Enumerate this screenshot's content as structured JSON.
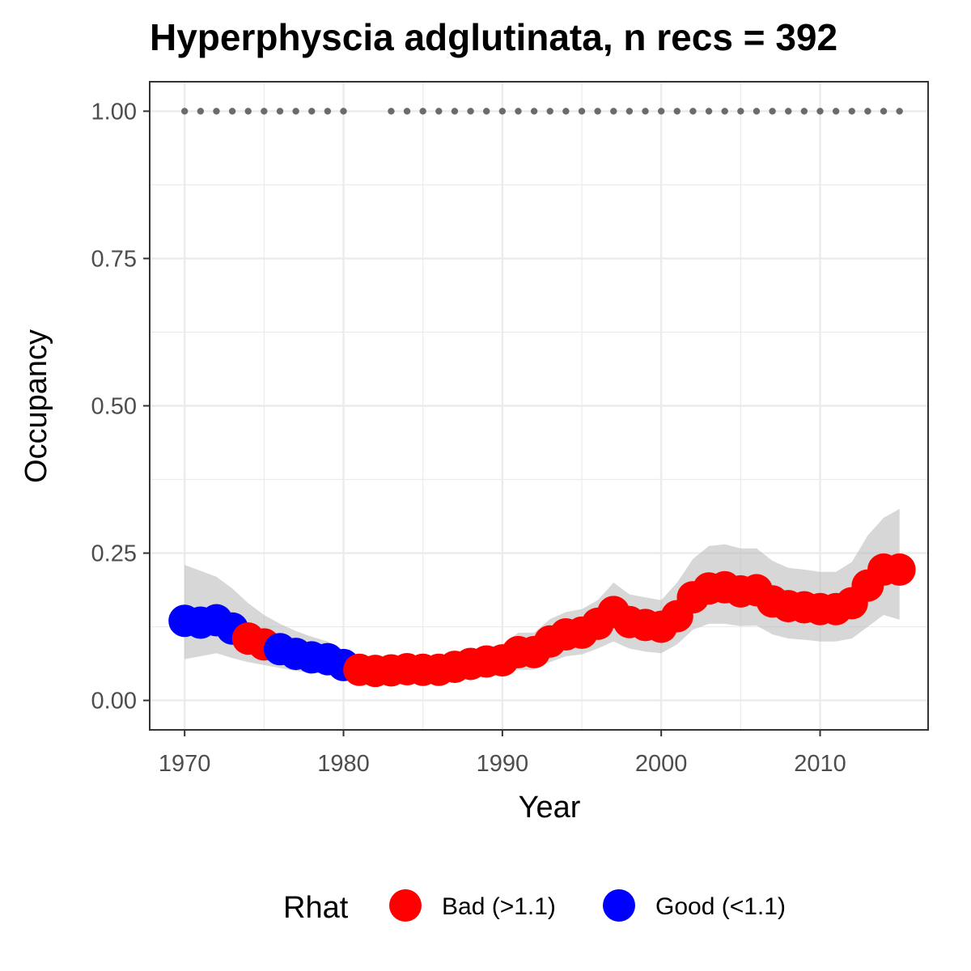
{
  "chart_data": {
    "type": "line",
    "title": "Hyperphyscia adglutinata, n recs = 392",
    "xlabel": "Year",
    "ylabel": "Occupancy",
    "xlim": [
      1967.8,
      2016.8
    ],
    "ylim": [
      -0.05,
      1.05
    ],
    "x_ticks": [
      1970,
      1980,
      1990,
      2000,
      2010
    ],
    "x_tick_labels": [
      "1970",
      "1980",
      "1990",
      "2000",
      "2010"
    ],
    "y_ticks": [
      0,
      0.25,
      0.5,
      0.75,
      1.0
    ],
    "y_tick_labels": [
      "0.00",
      "0.25",
      "0.50",
      "0.75",
      "1.00"
    ],
    "grid": true,
    "legend": {
      "title": "Rhat",
      "position": "bottom",
      "entries": [
        {
          "label": "Bad (>1.1)",
          "color": "#ff0000"
        },
        {
          "label": "Good (<1.1)",
          "color": "#0000ff"
        }
      ]
    },
    "series": [
      {
        "name": "Occupancy",
        "x": [
          1970,
          1971,
          1972,
          1973,
          1974,
          1975,
          1976,
          1977,
          1978,
          1979,
          1980,
          1981,
          1982,
          1983,
          1984,
          1985,
          1986,
          1987,
          1988,
          1989,
          1990,
          1991,
          1992,
          1993,
          1994,
          1995,
          1996,
          1997,
          1998,
          1999,
          2000,
          2001,
          2002,
          2003,
          2004,
          2005,
          2006,
          2007,
          2008,
          2009,
          2010,
          2011,
          2012,
          2013,
          2014,
          2015
        ],
        "y": [
          0.135,
          0.132,
          0.136,
          0.122,
          0.105,
          0.095,
          0.087,
          0.079,
          0.073,
          0.07,
          0.06,
          0.052,
          0.05,
          0.051,
          0.053,
          0.052,
          0.052,
          0.057,
          0.062,
          0.066,
          0.068,
          0.082,
          0.082,
          0.1,
          0.112,
          0.115,
          0.13,
          0.15,
          0.133,
          0.128,
          0.125,
          0.143,
          0.175,
          0.19,
          0.192,
          0.185,
          0.187,
          0.168,
          0.16,
          0.158,
          0.155,
          0.155,
          0.165,
          0.195,
          0.222,
          0.222
        ],
        "rhat": [
          "Good",
          "Good",
          "Good",
          "Good",
          "Bad",
          "Bad",
          "Good",
          "Good",
          "Good",
          "Good",
          "Good",
          "Bad",
          "Bad",
          "Bad",
          "Bad",
          "Bad",
          "Bad",
          "Bad",
          "Bad",
          "Bad",
          "Bad",
          "Bad",
          "Bad",
          "Bad",
          "Bad",
          "Bad",
          "Bad",
          "Bad",
          "Bad",
          "Bad",
          "Bad",
          "Bad",
          "Bad",
          "Bad",
          "Bad",
          "Bad",
          "Bad",
          "Bad",
          "Bad",
          "Bad",
          "Bad",
          "Bad",
          "Bad",
          "Bad",
          "Bad",
          "Bad"
        ],
        "lower": [
          0.07,
          0.075,
          0.08,
          0.072,
          0.065,
          0.06,
          0.055,
          0.05,
          0.047,
          0.045,
          0.04,
          0.035,
          0.033,
          0.034,
          0.035,
          0.035,
          0.035,
          0.037,
          0.04,
          0.042,
          0.042,
          0.052,
          0.052,
          0.065,
          0.075,
          0.078,
          0.088,
          0.1,
          0.088,
          0.083,
          0.08,
          0.095,
          0.12,
          0.13,
          0.13,
          0.126,
          0.127,
          0.112,
          0.105,
          0.103,
          0.1,
          0.1,
          0.105,
          0.125,
          0.145,
          0.137
        ],
        "upper": [
          0.23,
          0.22,
          0.21,
          0.19,
          0.165,
          0.145,
          0.13,
          0.118,
          0.108,
          0.1,
          0.085,
          0.075,
          0.07,
          0.07,
          0.072,
          0.071,
          0.071,
          0.078,
          0.085,
          0.09,
          0.095,
          0.115,
          0.115,
          0.138,
          0.15,
          0.155,
          0.17,
          0.2,
          0.18,
          0.175,
          0.17,
          0.2,
          0.24,
          0.262,
          0.265,
          0.258,
          0.258,
          0.237,
          0.225,
          0.222,
          0.218,
          0.218,
          0.235,
          0.28,
          0.31,
          0.325
        ]
      },
      {
        "name": "Records",
        "x": [
          1970,
          1971,
          1972,
          1973,
          1974,
          1975,
          1976,
          1977,
          1978,
          1979,
          1980,
          1983,
          1984,
          1985,
          1986,
          1987,
          1988,
          1989,
          1990,
          1991,
          1992,
          1993,
          1994,
          1995,
          1996,
          1997,
          1998,
          1999,
          2000,
          2001,
          2002,
          2003,
          2004,
          2005,
          2006,
          2007,
          2008,
          2009,
          2010,
          2011,
          2012,
          2013,
          2014,
          2015
        ],
        "y": 1.0
      }
    ]
  }
}
